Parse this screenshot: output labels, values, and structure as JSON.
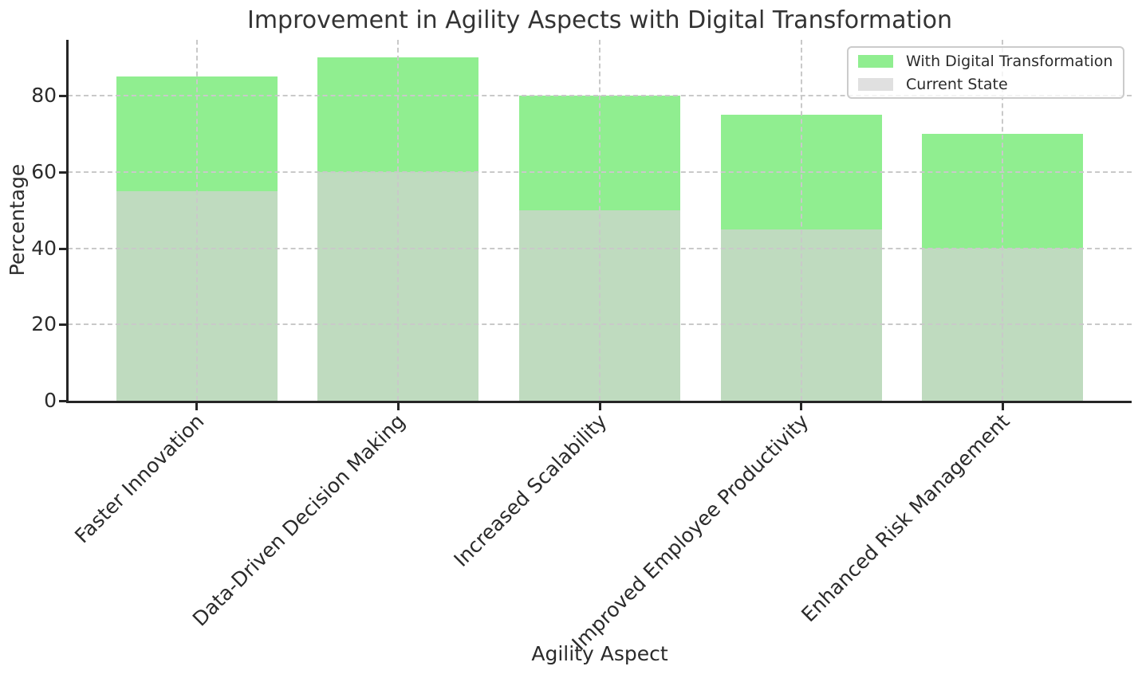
{
  "chart": {
    "title": "Improvement in Agility Aspects with Digital Transformation",
    "xlabel": "Agility Aspect",
    "ylabel": "Percentage"
  },
  "chart_data": {
    "type": "bar",
    "mode": "overlay",
    "title": "Improvement in Agility Aspects with Digital Transformation",
    "xlabel": "Agility Aspect",
    "ylabel": "Percentage",
    "categories": [
      "Faster Innovation",
      "Data-Driven Decision Making",
      "Increased Scalability",
      "Improved Employee Productivity",
      "Enhanced Risk Management"
    ],
    "series": [
      {
        "name": "With Digital Transformation",
        "color": "#90ee90",
        "alpha": 1.0,
        "values": [
          85,
          90,
          80,
          75,
          70
        ]
      },
      {
        "name": "Current State",
        "color": "#d3d3d3",
        "alpha": 0.7,
        "values": [
          55,
          60,
          50,
          45,
          40
        ]
      }
    ],
    "yticks": [
      0,
      20,
      40,
      60,
      80
    ],
    "ylim": [
      0,
      94.6
    ],
    "grid": {
      "style": "dashed",
      "color": "#c9c9c9",
      "horizontal": true,
      "vertical": true
    },
    "legend": {
      "position": "upper right"
    },
    "colors": {
      "axis": "#262626",
      "text": "#2b2b2b",
      "title": "#333333"
    }
  }
}
